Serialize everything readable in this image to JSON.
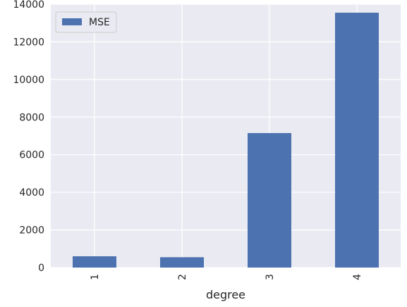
{
  "chart_data": {
    "type": "bar",
    "title": "",
    "xlabel": "degree",
    "ylabel": "",
    "categories": [
      "1",
      "2",
      "3",
      "4"
    ],
    "series": [
      {
        "name": "MSE",
        "values": [
          600,
          550,
          7150,
          13550
        ],
        "color": "#4c72b0"
      }
    ],
    "ylim": [
      0,
      14000
    ],
    "yticks": [
      0,
      2000,
      4000,
      6000,
      8000,
      10000,
      12000,
      14000
    ],
    "ytick_labels": [
      "0",
      "2000",
      "4000",
      "6000",
      "8000",
      "10000",
      "12000",
      "14000"
    ],
    "xtick_rotation": "vertical",
    "grid": true,
    "legend_position": "top-left",
    "background": "#eaeaf2",
    "grid_color": "#ffffff"
  }
}
